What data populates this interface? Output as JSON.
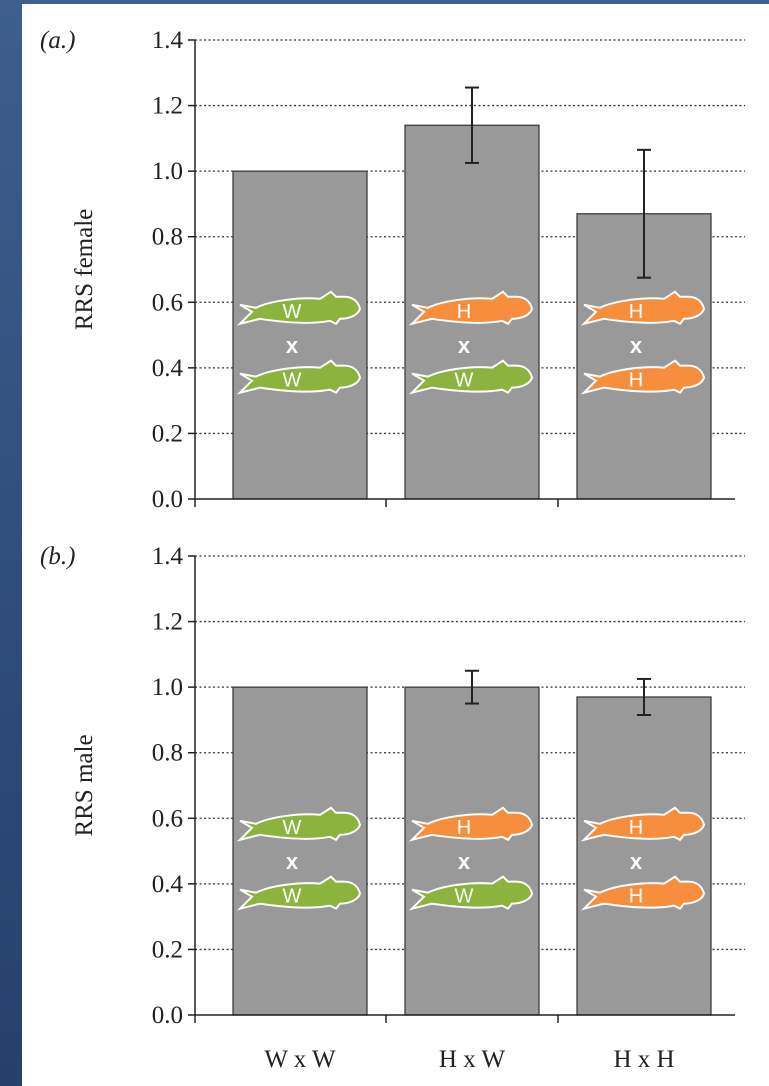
{
  "chart_data": [
    {
      "type": "bar",
      "panel_label": "(a.)",
      "ylabel": "RRS female",
      "categories": [
        null,
        null,
        null
      ],
      "values": [
        1.0,
        1.14,
        0.87
      ],
      "errors": [
        null,
        0.115,
        0.195
      ],
      "color": "#999999",
      "ylim": [
        0,
        1.4
      ],
      "yticks": [
        {
          "value": 0,
          "label": "0.0"
        },
        {
          "value": 0.2,
          "label": "0.2"
        },
        {
          "value": 0.4,
          "label": "0.4"
        },
        {
          "value": 0.6,
          "label": "0.6"
        },
        {
          "value": 0.8,
          "label": "0.8"
        },
        {
          "value": 1.0,
          "label": "1.0"
        },
        {
          "value": 1.2,
          "label": "1.2"
        },
        {
          "value": 1.4,
          "label": "1.4"
        }
      ],
      "grid": true,
      "fish_labels": [
        [
          "W",
          "W"
        ],
        [
          "H",
          "W"
        ],
        [
          "H",
          "H"
        ]
      ],
      "cross_label": "x",
      "fish_colors": {
        "W": "#8cb33e",
        "H": "#f68e3d"
      }
    },
    {
      "type": "bar",
      "panel_label": "(b.)",
      "ylabel": "RRS male",
      "categories": [
        "W x W",
        "H x W",
        "H x H"
      ],
      "values": [
        1.0,
        1.0,
        0.97
      ],
      "errors": [
        null,
        0.05,
        0.055
      ],
      "color": "#999999",
      "ylim": [
        0,
        1.4
      ],
      "yticks": [
        {
          "value": 0,
          "label": "0.0"
        },
        {
          "value": 0.2,
          "label": "0.2"
        },
        {
          "value": 0.4,
          "label": "0.4"
        },
        {
          "value": 0.6,
          "label": "0.6"
        },
        {
          "value": 0.8,
          "label": "0.8"
        },
        {
          "value": 1.0,
          "label": "1.0"
        },
        {
          "value": 1.2,
          "label": "1.2"
        },
        {
          "value": 1.4,
          "label": "1.4"
        }
      ],
      "grid": true,
      "fish_labels": [
        [
          "W",
          "W"
        ],
        [
          "H",
          "W"
        ],
        [
          "H",
          "H"
        ]
      ],
      "cross_label": "x",
      "fish_colors": {
        "W": "#8cb33e",
        "H": "#f68e3d"
      }
    }
  ]
}
